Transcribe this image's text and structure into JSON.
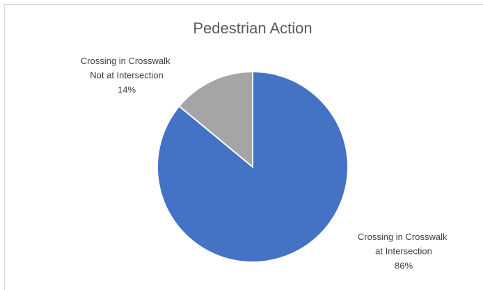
{
  "chart_data": {
    "type": "pie",
    "title": "Pedestrian Action",
    "categories": [
      "Crossing in Crosswalk at Intersection",
      "Crossing in Crosswalk Not at Intersection"
    ],
    "values": [
      86,
      14
    ],
    "value_labels": [
      "86%",
      "14%"
    ],
    "colors": [
      "#4472c4",
      "#a5a5a5"
    ]
  }
}
